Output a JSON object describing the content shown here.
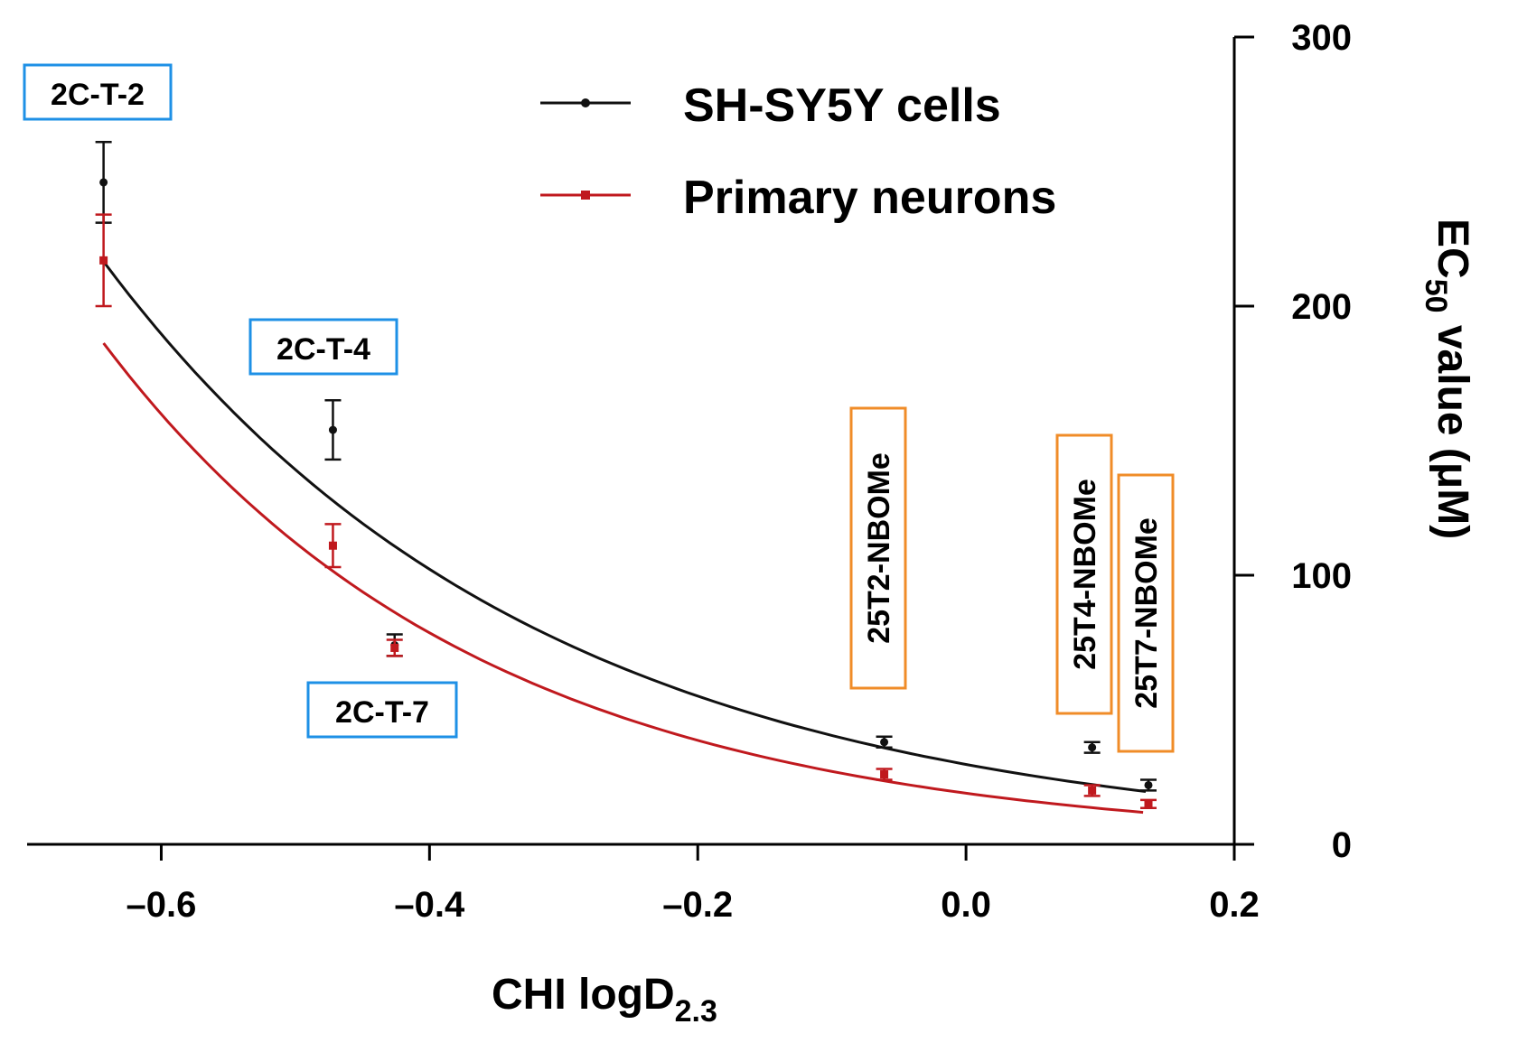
{
  "chart_data": {
    "type": "scatter",
    "x_axis": {
      "label": "CHI logD",
      "label_sub": "2.3",
      "range": [
        -0.7,
        0.2
      ],
      "ticks": [
        "-0.6",
        "-0.4",
        "-0.2",
        "0.0",
        "0.2"
      ],
      "tick_values": [
        -0.6,
        -0.4,
        -0.2,
        0.0,
        0.2
      ]
    },
    "y_axis": {
      "label_pre": "EC",
      "label_sub": "50",
      "label_post": " value (μM)",
      "range": [
        0,
        300
      ],
      "ticks": [
        "0",
        "100",
        "200",
        "300"
      ],
      "tick_values": [
        0,
        100,
        200,
        300
      ],
      "position": "right"
    },
    "legend": {
      "position": "top-center"
    },
    "colors": {
      "sh_sy5y": "#111111",
      "primary": "#c0191e",
      "blue_box": "#1e90e6",
      "orange_box": "#f08c28"
    },
    "series": [
      {
        "name": "SH-SY5Y cells",
        "points": [
          {
            "x": -0.643,
            "y": 246,
            "err": 15
          },
          {
            "x": -0.472,
            "y": 154,
            "err": 11
          },
          {
            "x": -0.426,
            "y": 74,
            "err": 4
          },
          {
            "x": -0.061,
            "y": 38,
            "err": 2
          },
          {
            "x": 0.094,
            "y": 36,
            "err": 2
          },
          {
            "x": 0.136,
            "y": 22,
            "err": 2
          }
        ],
        "fit": {
          "a": 29.7,
          "b": 3.09,
          "x_start": -0.643,
          "x_end": 0.134
        }
      },
      {
        "name": "Primary neurons",
        "points": [
          {
            "x": -0.643,
            "y": 217,
            "err": 17
          },
          {
            "x": -0.472,
            "y": 111,
            "err": 8
          },
          {
            "x": -0.426,
            "y": 73,
            "err": 3
          },
          {
            "x": -0.061,
            "y": 26,
            "err": 2
          },
          {
            "x": 0.094,
            "y": 20,
            "err": 2
          },
          {
            "x": 0.136,
            "y": 15,
            "err": 1.5
          }
        ],
        "fit": {
          "a": 19.0,
          "b": 3.55,
          "x_start": -0.643,
          "x_end": 0.132
        }
      }
    ],
    "annotations": [
      {
        "text": "2C-T-2",
        "class": "2C",
        "orientation": "horizontal"
      },
      {
        "text": "2C-T-4",
        "class": "2C",
        "orientation": "horizontal"
      },
      {
        "text": "2C-T-7",
        "class": "2C",
        "orientation": "horizontal"
      },
      {
        "text": "25T2-NBOMe",
        "class": "NBOMe",
        "orientation": "vertical"
      },
      {
        "text": "25T4-NBOMe",
        "class": "NBOMe",
        "orientation": "vertical"
      },
      {
        "text": "25T7-NBOMe",
        "class": "NBOMe",
        "orientation": "vertical"
      }
    ]
  }
}
